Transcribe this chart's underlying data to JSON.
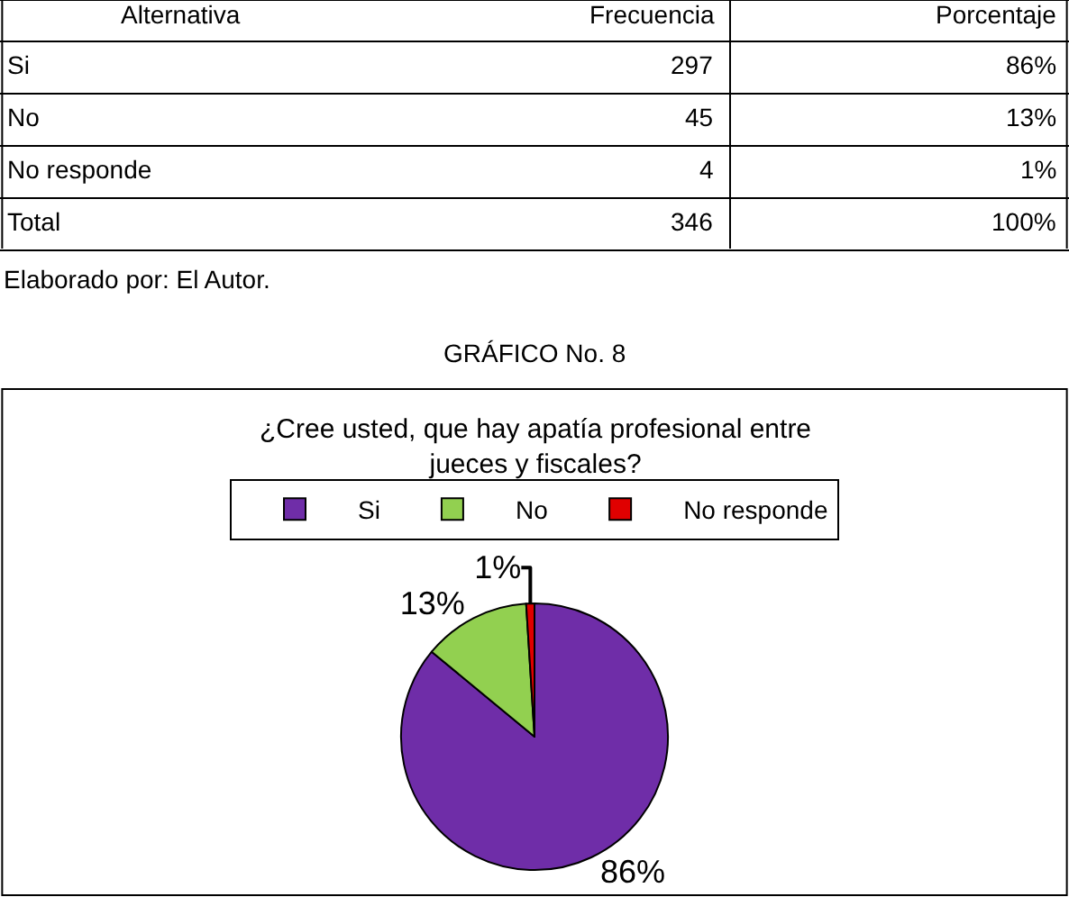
{
  "chart_data": [
    {
      "type": "other",
      "annotations": [
        "Alternativa",
        "Frecuencia",
        "Porcentaje",
        "Si",
        "297",
        "86%",
        "No",
        "45",
        "13%",
        "No responde",
        "4",
        "1%",
        "Total",
        "346",
        "100%",
        "Elaborado por: El Autor.",
        "GRÁFICO No. 8"
      ]
    },
    {
      "type": "pie",
      "title": "¿Cree usted, que hay apatía profesional entre jueces y fiscales?",
      "categories": [
        "Si",
        "No",
        "No responde"
      ],
      "values": [
        86,
        13,
        1
      ],
      "colors": [
        "#6f2da8",
        "#92d050",
        "#e00000"
      ],
      "value_labels": [
        "86%",
        "13%",
        "1%"
      ],
      "legend": "top"
    }
  ]
}
